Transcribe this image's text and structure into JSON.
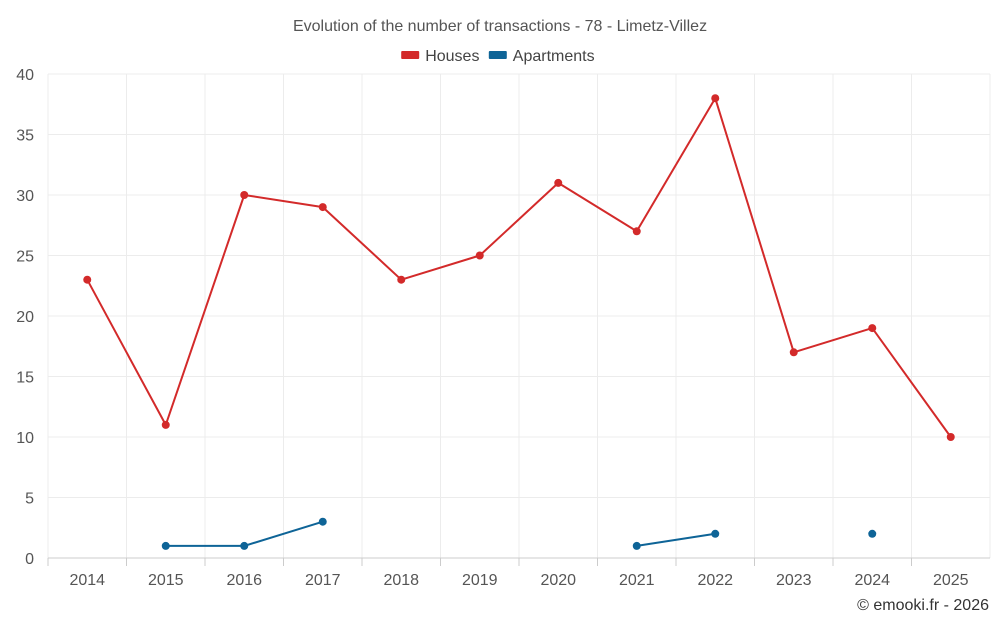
{
  "chart_data": {
    "type": "line",
    "title": "Evolution of the number of transactions - 78 - Limetz-Villez",
    "categories": [
      "2014",
      "2015",
      "2016",
      "2017",
      "2018",
      "2019",
      "2020",
      "2021",
      "2022",
      "2023",
      "2024",
      "2025"
    ],
    "ylim": [
      0,
      40
    ],
    "yticks": [
      0,
      5,
      10,
      15,
      20,
      25,
      30,
      35,
      40
    ],
    "grid": true,
    "legend_position": "top-center",
    "series": [
      {
        "name": "Houses",
        "color": "#d32a2a",
        "values": [
          23,
          11,
          30,
          29,
          23,
          25,
          31,
          27,
          38,
          17,
          19,
          10
        ]
      },
      {
        "name": "Apartments",
        "color": "#0e6497",
        "values": [
          null,
          1,
          1,
          3,
          null,
          null,
          null,
          1,
          2,
          null,
          2,
          null
        ]
      }
    ],
    "credit": "© emooki.fr - 2026"
  }
}
